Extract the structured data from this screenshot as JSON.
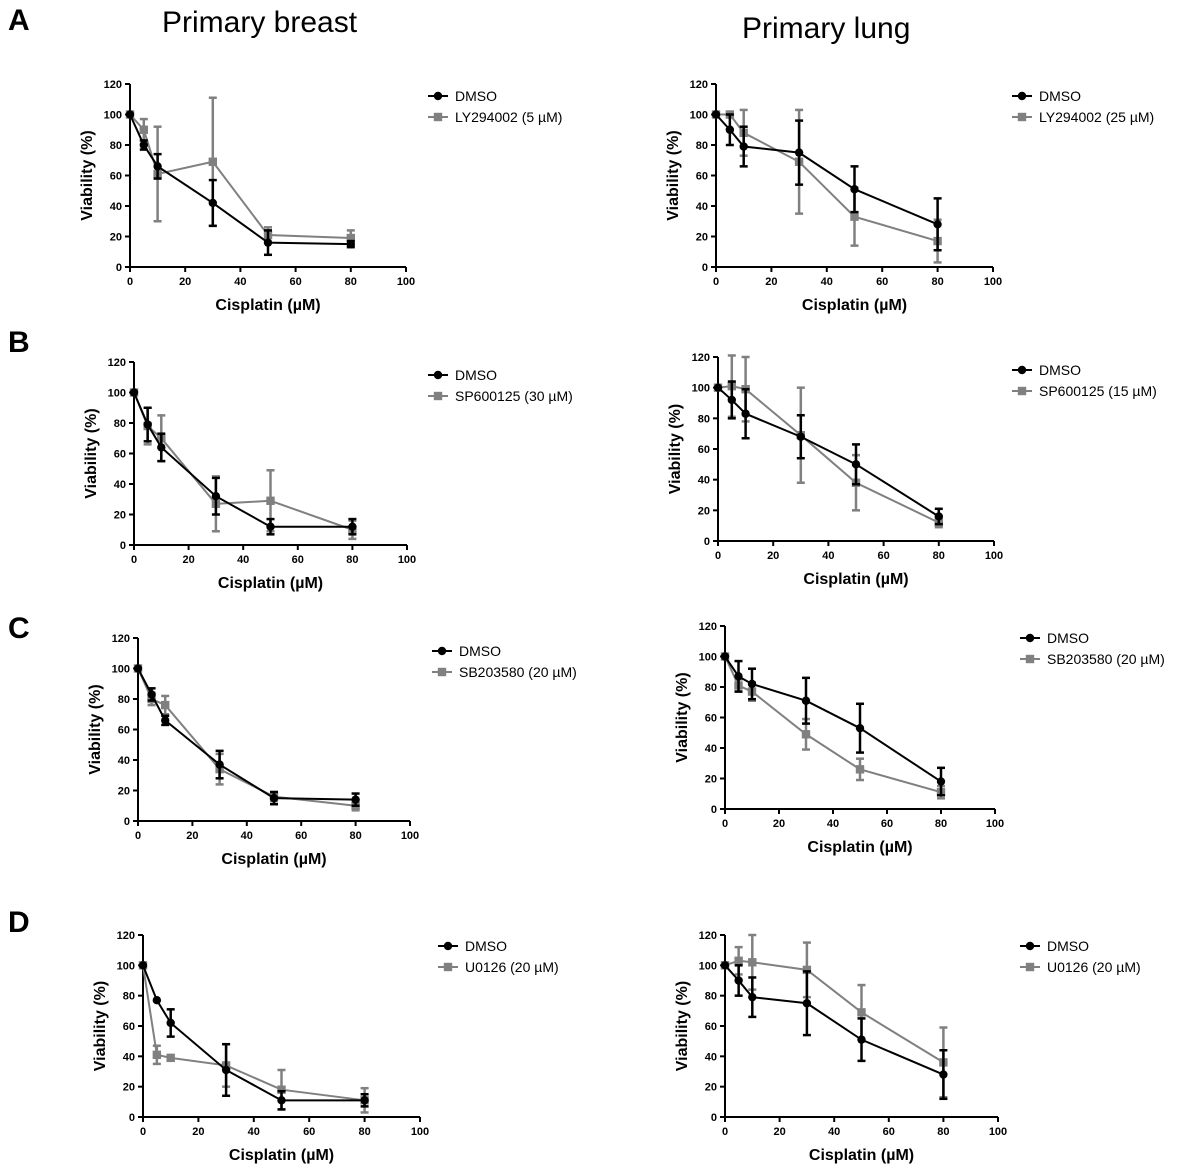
{
  "column_titles": [
    "Primary breast",
    "Primary lung"
  ],
  "row_letters": [
    "A",
    "B",
    "C",
    "D"
  ],
  "colors": {
    "dmso": "#000000",
    "treatment": "#808080"
  },
  "chart_data": [
    {
      "type": "line",
      "xlabel": "Cisplatin (µM)",
      "ylabel": "Viability (%)",
      "xlim": [
        0,
        100
      ],
      "ylim": [
        0,
        120
      ],
      "xticks": [
        "0",
        "20",
        "40",
        "60",
        "80",
        "100"
      ],
      "yticks": [
        "0",
        "20",
        "40",
        "60",
        "80",
        "100",
        "120"
      ],
      "legend": "right",
      "series": [
        {
          "name": "DMSO",
          "marker": "circle",
          "x": [
            0,
            5,
            10,
            30,
            50,
            80
          ],
          "y": [
            100,
            80,
            66,
            42,
            16,
            15
          ],
          "err": [
            0,
            3,
            8,
            15,
            8,
            2
          ]
        },
        {
          "name": "LY294002 (5 µM)",
          "marker": "square",
          "x": [
            0,
            5,
            10,
            30,
            50,
            80
          ],
          "y": [
            100,
            90,
            61,
            69,
            21,
            19
          ],
          "err": [
            0,
            7,
            31,
            42,
            5,
            5
          ]
        }
      ]
    },
    {
      "type": "line",
      "xlabel": "Cisplatin (µM)",
      "ylabel": "Viability (%)",
      "xlim": [
        0,
        100
      ],
      "ylim": [
        0,
        120
      ],
      "xticks": [
        "0",
        "20",
        "40",
        "60",
        "80",
        "100"
      ],
      "yticks": [
        "0",
        "20",
        "40",
        "60",
        "80",
        "100",
        "120"
      ],
      "legend": "right",
      "series": [
        {
          "name": "DMSO",
          "marker": "circle",
          "x": [
            0,
            5,
            10,
            30,
            50,
            80
          ],
          "y": [
            100,
            90,
            79,
            75,
            51,
            28
          ],
          "err": [
            0,
            10,
            13,
            21,
            15,
            17
          ]
        },
        {
          "name": "LY294002 (25 µM)",
          "marker": "square",
          "x": [
            0,
            5,
            10,
            30,
            50,
            80
          ],
          "y": [
            100,
            100,
            88,
            69,
            33,
            17
          ],
          "err": [
            0,
            0,
            15,
            34,
            19,
            14
          ]
        }
      ]
    },
    {
      "type": "line",
      "xlabel": "Cisplatin (µM)",
      "ylabel": "Viability (%)",
      "xlim": [
        0,
        100
      ],
      "ylim": [
        0,
        120
      ],
      "xticks": [
        "0",
        "20",
        "40",
        "60",
        "80",
        "100"
      ],
      "yticks": [
        "0",
        "20",
        "40",
        "60",
        "80",
        "100",
        "120"
      ],
      "legend": "right",
      "series": [
        {
          "name": "DMSO",
          "marker": "circle",
          "x": [
            0,
            5,
            10,
            30,
            50,
            80
          ],
          "y": [
            100,
            79,
            64,
            32,
            12,
            12
          ],
          "err": [
            0,
            11,
            9,
            12,
            5,
            5
          ]
        },
        {
          "name": "SP600125 (30 µM)",
          "marker": "square",
          "x": [
            0,
            5,
            10,
            30,
            50,
            80
          ],
          "y": [
            100,
            78,
            70,
            27,
            29,
            10
          ],
          "err": [
            0,
            12,
            15,
            18,
            20,
            6
          ]
        }
      ]
    },
    {
      "type": "line",
      "xlabel": "Cisplatin (µM)",
      "ylabel": "Viability (%)",
      "xlim": [
        0,
        100
      ],
      "ylim": [
        0,
        120
      ],
      "xticks": [
        "0",
        "20",
        "40",
        "60",
        "80",
        "100"
      ],
      "yticks": [
        "0",
        "20",
        "40",
        "60",
        "80",
        "100",
        "120"
      ],
      "legend": "right",
      "series": [
        {
          "name": "DMSO",
          "marker": "circle",
          "x": [
            0,
            5,
            10,
            30,
            50,
            80
          ],
          "y": [
            100,
            92,
            83,
            68,
            50,
            16
          ],
          "err": [
            0,
            12,
            16,
            14,
            13,
            5
          ]
        },
        {
          "name": "SP600125 (15 µM)",
          "marker": "square",
          "x": [
            0,
            5,
            10,
            30,
            50,
            80
          ],
          "y": [
            100,
            101,
            99,
            69,
            38,
            12
          ],
          "err": [
            0,
            20,
            21,
            31,
            18,
            3
          ]
        }
      ]
    },
    {
      "type": "line",
      "xlabel": "Cisplatin (µM)",
      "ylabel": "Viability (%)",
      "xlim": [
        0,
        100
      ],
      "ylim": [
        0,
        120
      ],
      "xticks": [
        "0",
        "20",
        "40",
        "60",
        "80",
        "100"
      ],
      "yticks": [
        "0",
        "20",
        "40",
        "60",
        "80",
        "100",
        "120"
      ],
      "legend": "right",
      "series": [
        {
          "name": "DMSO",
          "marker": "circle",
          "x": [
            0,
            5,
            10,
            30,
            50,
            80
          ],
          "y": [
            100,
            83,
            66,
            37,
            15,
            14
          ],
          "err": [
            0,
            4,
            3,
            9,
            4,
            4
          ]
        },
        {
          "name": "SB203580 (20 µM)",
          "marker": "square",
          "x": [
            0,
            5,
            10,
            30,
            50,
            80
          ],
          "y": [
            100,
            80,
            76,
            34,
            16,
            10
          ],
          "err": [
            0,
            4,
            6,
            10,
            3,
            3
          ]
        }
      ]
    },
    {
      "type": "line",
      "xlabel": "Cisplatin (µM)",
      "ylabel": "Viability (%)",
      "xlim": [
        0,
        100
      ],
      "ylim": [
        0,
        120
      ],
      "xticks": [
        "0",
        "20",
        "40",
        "60",
        "80",
        "100"
      ],
      "yticks": [
        "0",
        "20",
        "40",
        "60",
        "80",
        "100",
        "120"
      ],
      "legend": "right",
      "series": [
        {
          "name": "DMSO",
          "marker": "circle",
          "x": [
            0,
            5,
            10,
            30,
            50,
            80
          ],
          "y": [
            100,
            87,
            82,
            71,
            53,
            18
          ],
          "err": [
            0,
            10,
            10,
            15,
            16,
            9
          ]
        },
        {
          "name": "SB203580 (20 µM)",
          "marker": "square",
          "x": [
            0,
            5,
            10,
            30,
            50,
            80
          ],
          "y": [
            100,
            81,
            77,
            49,
            26,
            11
          ],
          "err": [
            0,
            4,
            6,
            10,
            7,
            4
          ]
        }
      ]
    },
    {
      "type": "line",
      "xlabel": "Cisplatin (µM)",
      "ylabel": "Viability (%)",
      "xlim": [
        0,
        100
      ],
      "ylim": [
        0,
        120
      ],
      "xticks": [
        "0",
        "20",
        "40",
        "60",
        "80",
        "100"
      ],
      "yticks": [
        "0",
        "20",
        "40",
        "60",
        "80",
        "100",
        "120"
      ],
      "legend": "right",
      "series": [
        {
          "name": "DMSO",
          "marker": "circle",
          "x": [
            0,
            5,
            10,
            30,
            50,
            80
          ],
          "y": [
            100,
            77,
            62,
            31,
            11,
            11
          ],
          "err": [
            0,
            0,
            9,
            17,
            6,
            4
          ]
        },
        {
          "name": "U0126 (20 µM)",
          "marker": "square",
          "x": [
            0,
            5,
            10,
            30,
            50,
            80
          ],
          "y": [
            100,
            41,
            39,
            34,
            18,
            11
          ],
          "err": [
            0,
            6,
            0,
            14,
            13,
            8
          ]
        }
      ]
    },
    {
      "type": "line",
      "xlabel": "Cisplatin (µM)",
      "ylabel": "Viability (%)",
      "xlim": [
        0,
        100
      ],
      "ylim": [
        0,
        120
      ],
      "xticks": [
        "0",
        "20",
        "40",
        "60",
        "80",
        "100"
      ],
      "yticks": [
        "0",
        "20",
        "40",
        "60",
        "80",
        "100",
        "120"
      ],
      "legend": "right",
      "series": [
        {
          "name": "DMSO",
          "marker": "circle",
          "x": [
            0,
            5,
            10,
            30,
            50,
            80
          ],
          "y": [
            100,
            90,
            79,
            75,
            51,
            28
          ],
          "err": [
            0,
            10,
            13,
            21,
            14,
            16
          ]
        },
        {
          "name": "U0126 (20 µM)",
          "marker": "square",
          "x": [
            0,
            5,
            10,
            30,
            50,
            80
          ],
          "y": [
            100,
            103,
            102,
            97,
            69,
            36
          ],
          "err": [
            0,
            9,
            18,
            18,
            18,
            23
          ]
        }
      ]
    }
  ]
}
